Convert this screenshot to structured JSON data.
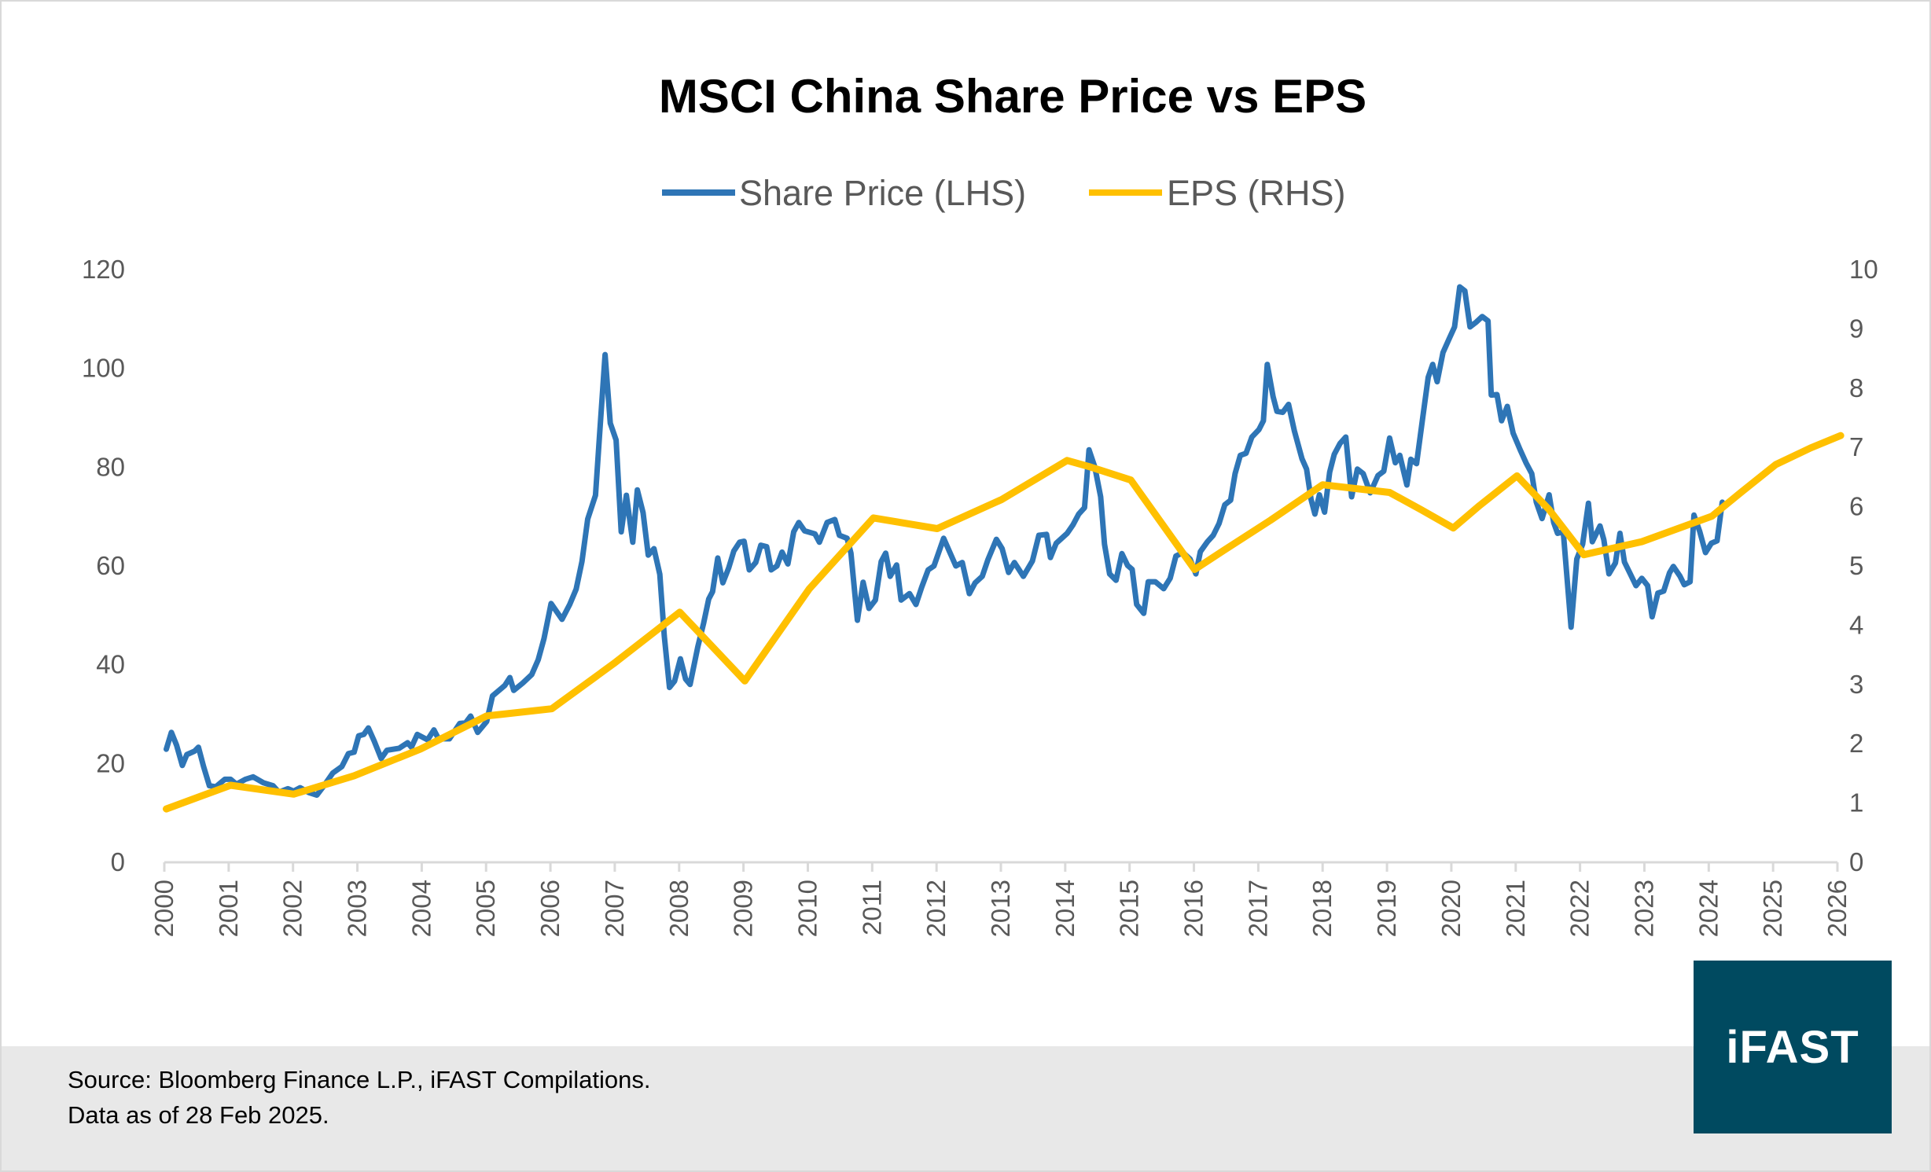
{
  "chart_data": {
    "type": "line",
    "title": "MSCI China Share Price vs EPS",
    "legend_position": "top",
    "grid": false,
    "x_ticks": [
      "2000",
      "2001",
      "2002",
      "2003",
      "2004",
      "2005",
      "2006",
      "2007",
      "2008",
      "2009",
      "2010",
      "2011",
      "2012",
      "2013",
      "2014",
      "2015",
      "2016",
      "2017",
      "2018",
      "2019",
      "2020",
      "2021",
      "2022",
      "2023",
      "2024",
      "2025",
      "2026"
    ],
    "xlim": [
      2000,
      2026
    ],
    "y_left": {
      "lim": [
        0,
        120
      ],
      "ticks": [
        "0",
        "20",
        "40",
        "60",
        "80",
        "100",
        "120"
      ]
    },
    "y_right": {
      "lim": [
        0,
        10
      ],
      "ticks": [
        "0",
        "1",
        "2",
        "3",
        "4",
        "5",
        "6",
        "7",
        "8",
        "9",
        "10"
      ]
    },
    "series": [
      {
        "name": "Share Price (LHS)",
        "axis": "left",
        "color": "#2e75b6",
        "points": [
          [
            2000.03,
            22.9
          ],
          [
            2000.11,
            26.3
          ],
          [
            2000.19,
            23.7
          ],
          [
            2000.28,
            19.6
          ],
          [
            2000.35,
            21.8
          ],
          [
            2000.47,
            22.5
          ],
          [
            2000.53,
            23.3
          ],
          [
            2000.61,
            19.4
          ],
          [
            2000.7,
            15.5
          ],
          [
            2000.8,
            15.3
          ],
          [
            2000.94,
            16.8
          ],
          [
            2001.03,
            16.8
          ],
          [
            2001.12,
            15.8
          ],
          [
            2001.26,
            16.8
          ],
          [
            2001.38,
            17.3
          ],
          [
            2001.54,
            16.1
          ],
          [
            2001.69,
            15.5
          ],
          [
            2001.78,
            14.2
          ],
          [
            2001.92,
            14.9
          ],
          [
            2002.01,
            14.4
          ],
          [
            2002.11,
            15.1
          ],
          [
            2002.25,
            14.1
          ],
          [
            2002.37,
            13.6
          ],
          [
            2002.48,
            15.5
          ],
          [
            2002.62,
            18.1
          ],
          [
            2002.76,
            19.4
          ],
          [
            2002.86,
            22.0
          ],
          [
            2002.95,
            22.3
          ],
          [
            2003.02,
            25.6
          ],
          [
            2003.1,
            25.9
          ],
          [
            2003.17,
            27.2
          ],
          [
            2003.26,
            24.6
          ],
          [
            2003.37,
            21.0
          ],
          [
            2003.46,
            22.7
          ],
          [
            2003.65,
            23.1
          ],
          [
            2003.78,
            24.2
          ],
          [
            2003.84,
            23.3
          ],
          [
            2003.93,
            25.9
          ],
          [
            2004.09,
            24.8
          ],
          [
            2004.19,
            26.8
          ],
          [
            2004.26,
            25.0
          ],
          [
            2004.43,
            25.0
          ],
          [
            2004.59,
            28.1
          ],
          [
            2004.68,
            28.2
          ],
          [
            2004.76,
            29.6
          ],
          [
            2004.87,
            26.3
          ],
          [
            2005.01,
            28.5
          ],
          [
            2005.1,
            33.7
          ],
          [
            2005.29,
            35.8
          ],
          [
            2005.37,
            37.4
          ],
          [
            2005.43,
            34.8
          ],
          [
            2005.57,
            36.3
          ],
          [
            2005.71,
            38.0
          ],
          [
            2005.81,
            41.0
          ],
          [
            2005.9,
            45.3
          ],
          [
            2006.01,
            52.4
          ],
          [
            2006.18,
            49.2
          ],
          [
            2006.3,
            52.2
          ],
          [
            2006.4,
            55.3
          ],
          [
            2006.49,
            60.9
          ],
          [
            2006.58,
            69.5
          ],
          [
            2006.7,
            74.3
          ],
          [
            2006.76,
            85.9
          ],
          [
            2006.85,
            102.8
          ],
          [
            2006.93,
            88.9
          ],
          [
            2007.02,
            85.5
          ],
          [
            2007.1,
            66.9
          ],
          [
            2007.18,
            74.3
          ],
          [
            2007.28,
            64.8
          ],
          [
            2007.35,
            75.4
          ],
          [
            2007.44,
            70.8
          ],
          [
            2007.52,
            62.2
          ],
          [
            2007.61,
            63.5
          ],
          [
            2007.7,
            58.3
          ],
          [
            2007.77,
            45.8
          ],
          [
            2007.85,
            35.4
          ],
          [
            2007.93,
            36.7
          ],
          [
            2008.02,
            41.2
          ],
          [
            2008.1,
            37.1
          ],
          [
            2008.17,
            36.0
          ],
          [
            2008.29,
            43.6
          ],
          [
            2008.38,
            48.4
          ],
          [
            2008.46,
            53.3
          ],
          [
            2008.52,
            54.8
          ],
          [
            2008.6,
            61.6
          ],
          [
            2008.68,
            56.6
          ],
          [
            2008.77,
            59.6
          ],
          [
            2008.85,
            63.0
          ],
          [
            2008.94,
            64.8
          ],
          [
            2009.01,
            65.0
          ],
          [
            2009.09,
            59.2
          ],
          [
            2009.19,
            60.7
          ],
          [
            2009.27,
            64.2
          ],
          [
            2009.36,
            63.9
          ],
          [
            2009.43,
            59.2
          ],
          [
            2009.52,
            60.0
          ],
          [
            2009.6,
            62.8
          ],
          [
            2009.69,
            60.4
          ],
          [
            2009.78,
            66.9
          ],
          [
            2009.86,
            68.8
          ],
          [
            2009.95,
            67.1
          ],
          [
            2010.11,
            66.5
          ],
          [
            2010.18,
            64.8
          ],
          [
            2010.3,
            68.8
          ],
          [
            2010.42,
            69.4
          ],
          [
            2010.49,
            66.2
          ],
          [
            2010.61,
            65.6
          ],
          [
            2010.67,
            62.6
          ],
          [
            2010.77,
            49.0
          ],
          [
            2010.86,
            56.7
          ],
          [
            2010.95,
            51.4
          ],
          [
            2011.05,
            53.1
          ],
          [
            2011.14,
            60.9
          ],
          [
            2011.21,
            62.6
          ],
          [
            2011.28,
            57.9
          ],
          [
            2011.38,
            60.2
          ],
          [
            2011.45,
            53.1
          ],
          [
            2011.58,
            54.4
          ],
          [
            2011.68,
            52.2
          ],
          [
            2011.77,
            55.7
          ],
          [
            2011.87,
            59.2
          ],
          [
            2011.96,
            60.0
          ],
          [
            2012.11,
            65.6
          ],
          [
            2012.3,
            60.0
          ],
          [
            2012.4,
            60.7
          ],
          [
            2012.51,
            54.4
          ],
          [
            2012.6,
            56.6
          ],
          [
            2012.71,
            57.9
          ],
          [
            2012.8,
            61.3
          ],
          [
            2012.93,
            65.4
          ],
          [
            2013.02,
            63.5
          ],
          [
            2013.12,
            58.7
          ],
          [
            2013.21,
            60.7
          ],
          [
            2013.35,
            57.9
          ],
          [
            2013.49,
            61.0
          ],
          [
            2013.59,
            66.2
          ],
          [
            2013.71,
            66.4
          ],
          [
            2013.77,
            61.7
          ],
          [
            2013.86,
            64.6
          ],
          [
            2014.03,
            66.6
          ],
          [
            2014.12,
            68.3
          ],
          [
            2014.21,
            70.5
          ],
          [
            2014.3,
            71.8
          ],
          [
            2014.37,
            83.5
          ],
          [
            2014.46,
            80.0
          ],
          [
            2014.55,
            74.0
          ],
          [
            2014.61,
            64.4
          ],
          [
            2014.69,
            58.4
          ],
          [
            2014.79,
            57.1
          ],
          [
            2014.88,
            62.5
          ],
          [
            2014.97,
            60.1
          ],
          [
            2015.04,
            59.3
          ],
          [
            2015.11,
            52.2
          ],
          [
            2015.22,
            50.4
          ],
          [
            2015.29,
            56.8
          ],
          [
            2015.4,
            56.8
          ],
          [
            2015.53,
            55.4
          ],
          [
            2015.63,
            57.5
          ],
          [
            2015.72,
            62.0
          ],
          [
            2015.83,
            62.7
          ],
          [
            2015.94,
            61.4
          ],
          [
            2016.03,
            58.4
          ],
          [
            2016.1,
            62.9
          ],
          [
            2016.21,
            64.9
          ],
          [
            2016.3,
            66.2
          ],
          [
            2016.39,
            68.6
          ],
          [
            2016.48,
            72.4
          ],
          [
            2016.57,
            73.3
          ],
          [
            2016.64,
            78.7
          ],
          [
            2016.72,
            82.4
          ],
          [
            2016.81,
            82.8
          ],
          [
            2016.9,
            86.1
          ],
          [
            2017.01,
            87.6
          ],
          [
            2017.08,
            89.4
          ],
          [
            2017.14,
            100.8
          ],
          [
            2017.23,
            94.3
          ],
          [
            2017.29,
            91.3
          ],
          [
            2017.38,
            91.1
          ],
          [
            2017.47,
            92.7
          ],
          [
            2017.56,
            87.4
          ],
          [
            2017.68,
            81.7
          ],
          [
            2017.75,
            79.6
          ],
          [
            2017.82,
            73.5
          ],
          [
            2017.88,
            70.5
          ],
          [
            2017.95,
            74.4
          ],
          [
            2018.03,
            70.9
          ],
          [
            2018.11,
            79.0
          ],
          [
            2018.18,
            82.6
          ],
          [
            2018.27,
            84.8
          ],
          [
            2018.36,
            86.1
          ],
          [
            2018.45,
            74.0
          ],
          [
            2018.54,
            79.6
          ],
          [
            2018.63,
            78.7
          ],
          [
            2018.74,
            74.8
          ],
          [
            2018.86,
            78.3
          ],
          [
            2018.95,
            79.2
          ],
          [
            2019.04,
            85.9
          ],
          [
            2019.13,
            80.9
          ],
          [
            2019.2,
            82.4
          ],
          [
            2019.31,
            76.4
          ],
          [
            2019.37,
            81.6
          ],
          [
            2019.46,
            80.7
          ],
          [
            2019.55,
            89.5
          ],
          [
            2019.64,
            98.2
          ],
          [
            2019.71,
            100.8
          ],
          [
            2019.78,
            97.3
          ],
          [
            2019.87,
            103.2
          ],
          [
            2019.96,
            105.8
          ],
          [
            2020.05,
            108.4
          ],
          [
            2020.13,
            116.5
          ],
          [
            2020.21,
            115.7
          ],
          [
            2020.29,
            108.4
          ],
          [
            2020.39,
            109.4
          ],
          [
            2020.48,
            110.5
          ],
          [
            2020.57,
            109.6
          ],
          [
            2020.62,
            94.6
          ],
          [
            2020.71,
            94.7
          ],
          [
            2020.78,
            89.4
          ],
          [
            2020.87,
            92.3
          ],
          [
            2020.96,
            86.9
          ],
          [
            2021.07,
            83.5
          ],
          [
            2021.16,
            80.9
          ],
          [
            2021.25,
            78.7
          ],
          [
            2021.32,
            72.9
          ],
          [
            2021.41,
            69.6
          ],
          [
            2021.52,
            74.4
          ],
          [
            2021.59,
            68.8
          ],
          [
            2021.65,
            66.6
          ],
          [
            2021.74,
            66.9
          ],
          [
            2021.86,
            47.6
          ],
          [
            2021.95,
            61.4
          ],
          [
            2022.04,
            64.4
          ],
          [
            2022.13,
            72.7
          ],
          [
            2022.19,
            64.9
          ],
          [
            2022.31,
            68.1
          ],
          [
            2022.37,
            65.3
          ],
          [
            2022.45,
            58.4
          ],
          [
            2022.55,
            60.6
          ],
          [
            2022.62,
            66.6
          ],
          [
            2022.69,
            60.8
          ],
          [
            2022.78,
            58.4
          ],
          [
            2022.87,
            56.0
          ],
          [
            2022.96,
            57.5
          ],
          [
            2023.05,
            56.0
          ],
          [
            2023.12,
            49.7
          ],
          [
            2023.21,
            54.5
          ],
          [
            2023.3,
            54.9
          ],
          [
            2023.39,
            58.6
          ],
          [
            2023.45,
            59.9
          ],
          [
            2023.55,
            58.0
          ],
          [
            2023.62,
            56.2
          ],
          [
            2023.71,
            56.8
          ],
          [
            2023.77,
            70.3
          ],
          [
            2023.86,
            67.0
          ],
          [
            2023.95,
            62.7
          ],
          [
            2024.04,
            64.6
          ],
          [
            2024.13,
            65.1
          ],
          [
            2024.21,
            72.9
          ]
        ]
      },
      {
        "name": "EPS (RHS)",
        "axis": "right",
        "color": "#ffc000",
        "points": [
          [
            2000.03,
            0.9
          ],
          [
            2001.03,
            1.3
          ],
          [
            2002.01,
            1.15
          ],
          [
            2002.95,
            1.46
          ],
          [
            2003.98,
            1.91
          ],
          [
            2005.01,
            2.47
          ],
          [
            2006.02,
            2.59
          ],
          [
            2006.98,
            3.35
          ],
          [
            2008.01,
            4.22
          ],
          [
            2009.02,
            3.06
          ],
          [
            2010.02,
            4.61
          ],
          [
            2011.02,
            5.81
          ],
          [
            2012.01,
            5.63
          ],
          [
            2013.01,
            6.12
          ],
          [
            2014.03,
            6.78
          ],
          [
            2014.39,
            6.67
          ],
          [
            2015.02,
            6.45
          ],
          [
            2016.01,
            4.94
          ],
          [
            2016.46,
            5.26
          ],
          [
            2017.19,
            5.77
          ],
          [
            2018.0,
            6.37
          ],
          [
            2019.04,
            6.24
          ],
          [
            2019.53,
            5.95
          ],
          [
            2020.03,
            5.64
          ],
          [
            2020.44,
            6.02
          ],
          [
            2021.02,
            6.52
          ],
          [
            2021.52,
            5.95
          ],
          [
            2022.06,
            5.19
          ],
          [
            2022.96,
            5.41
          ],
          [
            2024.05,
            5.84
          ],
          [
            2024.5,
            6.24
          ],
          [
            2025.04,
            6.71
          ],
          [
            2025.58,
            6.99
          ],
          [
            2026.05,
            7.2
          ]
        ]
      }
    ]
  },
  "footer": {
    "source": "Source: Bloomberg Finance L.P., iFAST Compilations.",
    "date_note": "Data as of 28 Feb 2025.",
    "logo_text": "iFAST",
    "background": "#e8e8e8",
    "logo_color": "#004a60"
  }
}
